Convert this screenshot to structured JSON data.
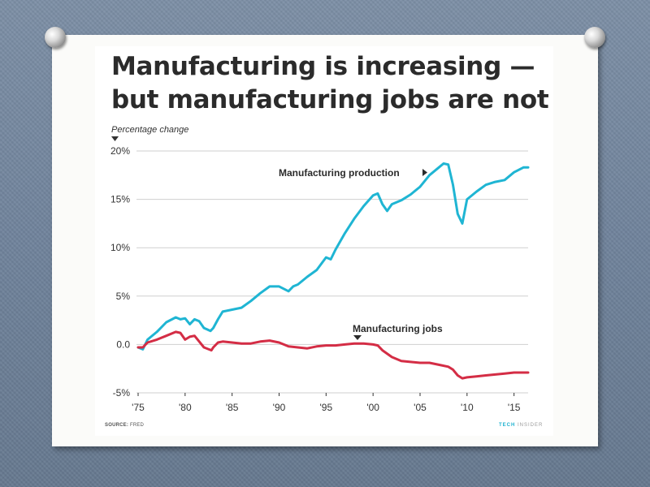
{
  "slide": {
    "title_line1": "Manufacturing is increasing —",
    "title_line2": "but manufacturing jobs are not",
    "source_label": "SOURCE:",
    "source_value": "FRED",
    "brand_part1": "TECH",
    "brand_part2": "INSIDER"
  },
  "chart_data": {
    "type": "line",
    "title": "Manufacturing is increasing — but manufacturing jobs are not",
    "ylabel": "Percentage change",
    "xlim": [
      1975,
      2016.5
    ],
    "ylim": [
      -5,
      20
    ],
    "grid": true,
    "x_ticks": [
      {
        "value": 1975,
        "label": "'75"
      },
      {
        "value": 1980,
        "label": "'80"
      },
      {
        "value": 1985,
        "label": "'85"
      },
      {
        "value": 1990,
        "label": "'90"
      },
      {
        "value": 1995,
        "label": "'95"
      },
      {
        "value": 2000,
        "label": "'00"
      },
      {
        "value": 2005,
        "label": "'05"
      },
      {
        "value": 2010,
        "label": "'10"
      },
      {
        "value": 2015,
        "label": "'15"
      }
    ],
    "y_ticks": [
      {
        "value": 20,
        "label": "20%"
      },
      {
        "value": 15,
        "label": "15%"
      },
      {
        "value": 10,
        "label": "10%"
      },
      {
        "value": 5,
        "label": "5%"
      },
      {
        "value": 0,
        "label": "0.0"
      },
      {
        "value": -5,
        "label": "-5%"
      }
    ],
    "series": [
      {
        "name": "Manufacturing production",
        "color": "#1fb5d3",
        "x": [
          1975,
          1975.5,
          1976,
          1977,
          1978,
          1979,
          1979.5,
          1980,
          1980.5,
          1981,
          1981.5,
          1982,
          1982.7,
          1983,
          1983.5,
          1984,
          1985,
          1986,
          1987,
          1988,
          1989,
          1990,
          1991,
          1991.5,
          1992,
          1993,
          1994,
          1995,
          1995.5,
          1996,
          1997,
          1998,
          1999,
          2000,
          2000.5,
          2001,
          2001.5,
          2002,
          2003,
          2004,
          2005,
          2006,
          2007,
          2007.5,
          2008,
          2008.5,
          2009,
          2009.5,
          2010,
          2011,
          2012,
          2013,
          2014,
          2015,
          2016,
          2016.5
        ],
        "y": [
          -0.3,
          -0.5,
          0.5,
          1.3,
          2.3,
          2.8,
          2.6,
          2.7,
          2.1,
          2.6,
          2.4,
          1.7,
          1.4,
          1.7,
          2.6,
          3.4,
          3.6,
          3.8,
          4.5,
          5.3,
          6.0,
          6.0,
          5.5,
          6.0,
          6.2,
          7.0,
          7.7,
          9.0,
          8.8,
          9.8,
          11.5,
          13.0,
          14.3,
          15.4,
          15.6,
          14.5,
          13.8,
          14.5,
          14.9,
          15.5,
          16.3,
          17.5,
          18.3,
          18.7,
          18.6,
          16.5,
          13.5,
          12.5,
          15.0,
          15.8,
          16.5,
          16.8,
          17.0,
          17.8,
          18.3,
          18.3
        ]
      },
      {
        "name": "Manufacturing jobs",
        "color": "#d42d45",
        "x": [
          1975,
          1975.5,
          1976,
          1977,
          1978,
          1979,
          1979.5,
          1980,
          1980.5,
          1981,
          1981.5,
          1982,
          1982.8,
          1983,
          1983.5,
          1984,
          1985,
          1986,
          1987,
          1988,
          1989,
          1990,
          1991,
          1992,
          1993,
          1994,
          1995,
          1996,
          1997,
          1998,
          1999,
          2000,
          2000.5,
          2001,
          2002,
          2003,
          2004,
          2005,
          2006,
          2007,
          2008,
          2008.5,
          2009,
          2009.5,
          2010,
          2011,
          2012,
          2013,
          2014,
          2015,
          2016,
          2016.5
        ],
        "y": [
          -0.3,
          -0.3,
          0.2,
          0.5,
          0.9,
          1.3,
          1.2,
          0.5,
          0.8,
          0.9,
          0.3,
          -0.3,
          -0.6,
          -0.3,
          0.2,
          0.3,
          0.2,
          0.1,
          0.1,
          0.3,
          0.4,
          0.2,
          -0.2,
          -0.3,
          -0.4,
          -0.2,
          -0.1,
          -0.1,
          0.0,
          0.1,
          0.1,
          0.0,
          -0.1,
          -0.6,
          -1.3,
          -1.7,
          -1.8,
          -1.9,
          -1.9,
          -2.1,
          -2.3,
          -2.6,
          -3.2,
          -3.5,
          -3.4,
          -3.3,
          -3.2,
          -3.1,
          -3.0,
          -2.9,
          -2.9,
          -2.9
        ]
      }
    ],
    "annotations": [
      {
        "text": "Manufacturing production",
        "marker": "right-arrow"
      },
      {
        "text": "Manufacturing jobs",
        "marker": "down-arrow"
      },
      {
        "text": "Percentage change",
        "marker": "down-arrow"
      }
    ]
  }
}
